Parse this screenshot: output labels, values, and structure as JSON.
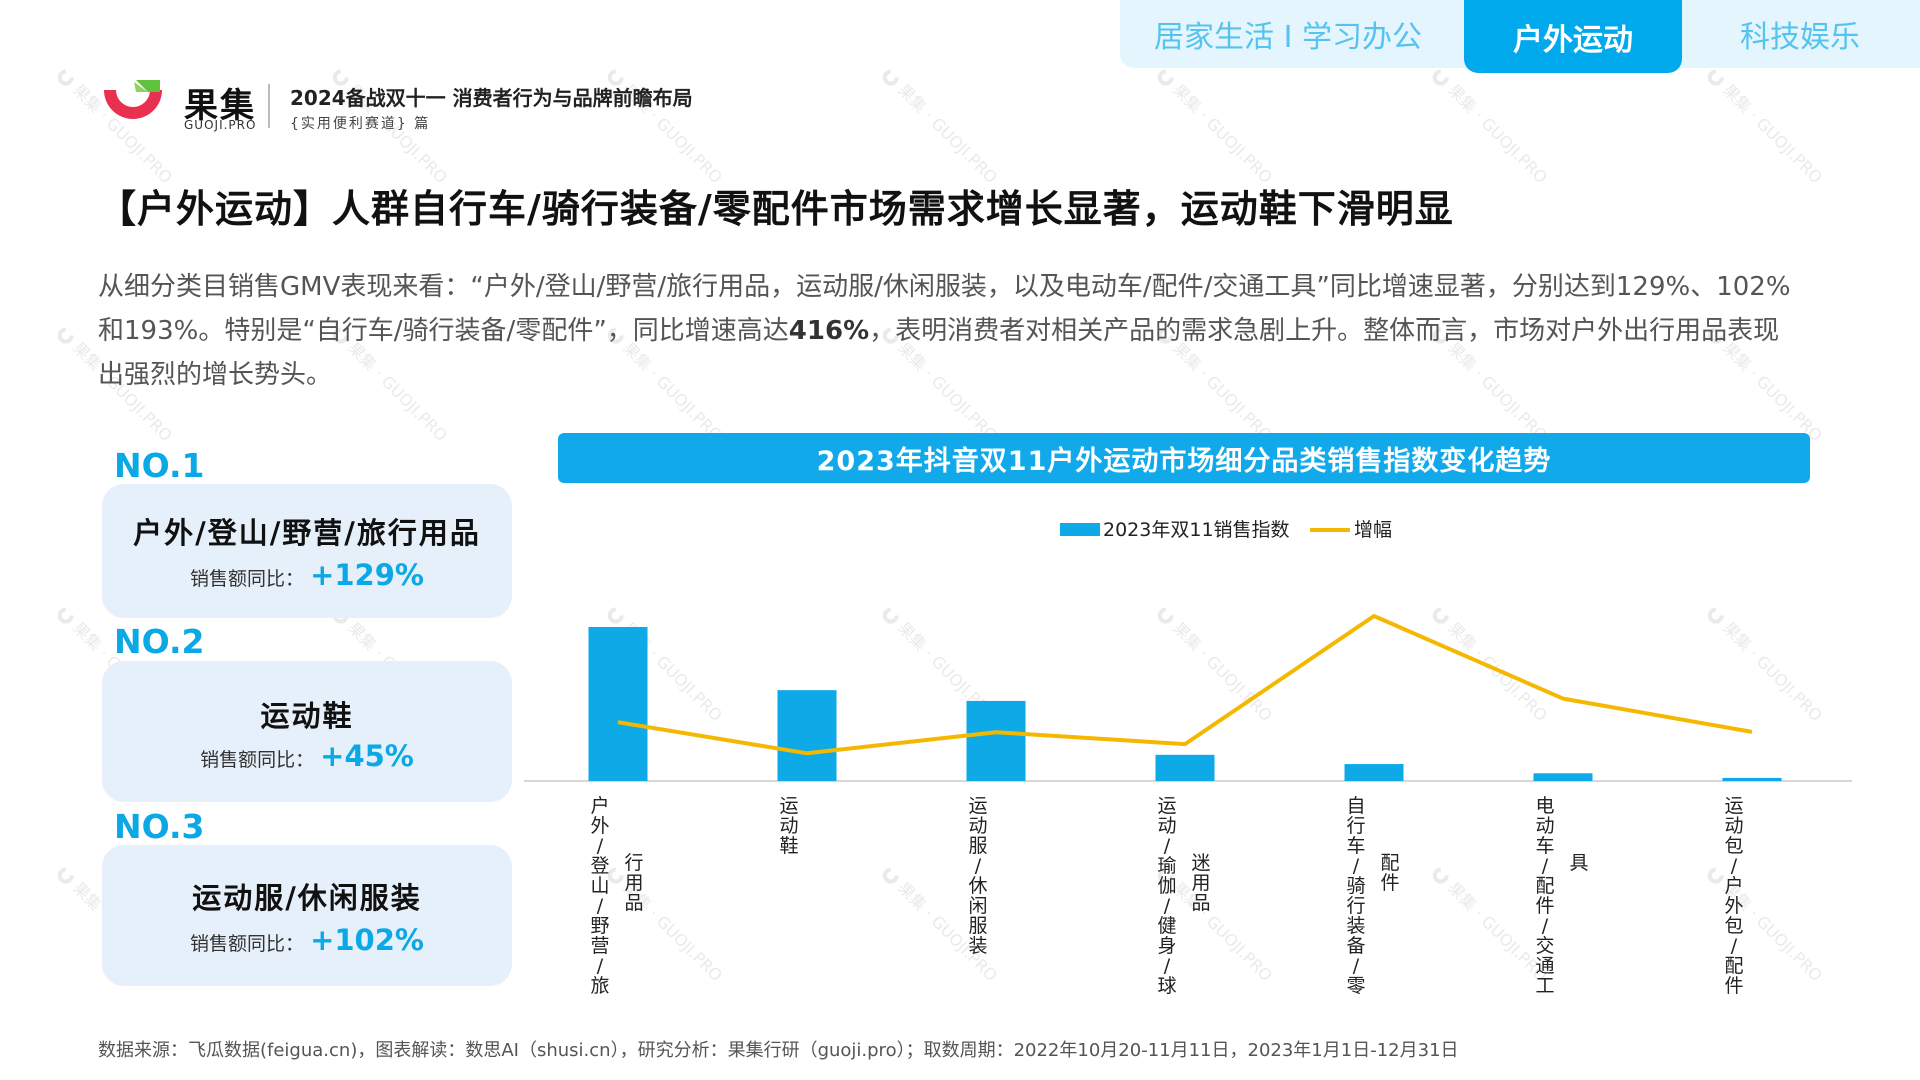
{
  "tabs": [
    {
      "label": "居家生活 I 学习办公",
      "active": false
    },
    {
      "label": "户外运动",
      "active": true
    },
    {
      "label": "科技娱乐",
      "active": false
    }
  ],
  "logo": {
    "name": "果集",
    "sub": "GUOJI.PRO",
    "report_title": "2024备战双十一 消费者行为与品牌前瞻布局",
    "report_sub": "{实用便利赛道} 篇"
  },
  "watermark": {
    "text": "果集 · GUOJI.PRO"
  },
  "headline": "【户外运动】人群自行车/骑行装备/零配件市场需求增长显著，运动鞋下滑明显",
  "intro": {
    "part1": "从细分类目销售GMV表现来看：“户外/登山/野营/旅行用品，运动服/休闲服装，以及电动车/配件/交通工具”同比增速显著，分别达到129%、102%和193%。特别是“自行车/骑行装备/零配件”，同比增速高达",
    "highlight": "416%",
    "part2": "，表明消费者对相关产品的需求急剧上升。整体而言，市场对户外出行用品表现出强烈的增长势头。"
  },
  "rankings": [
    {
      "rank": "NO.1",
      "name": "户外/登山/野营/旅行用品",
      "growth_label": "销售额同比：",
      "growth_value": "+129%"
    },
    {
      "rank": "NO.2",
      "name": "运动鞋",
      "growth_label": "销售额同比：",
      "growth_value": "+45%"
    },
    {
      "rank": "NO.3",
      "name": "运动服/休闲服装",
      "growth_label": "销售额同比：",
      "growth_value": "+102%"
    }
  ],
  "chart_data": {
    "type": "bar",
    "title": "2023年抖音双11户外运动市场细分品类销售指数变化趋势",
    "categories": [
      {
        "col1": "户外/登山/野营/旅",
        "col2": "行用品"
      },
      {
        "col1": "运动鞋",
        "col2": ""
      },
      {
        "col1": "运动服/休闲服装",
        "col2": ""
      },
      {
        "col1": "运动/瑜伽/健身/球",
        "col2": "迷用品"
      },
      {
        "col1": "自行车/骑行装备/零",
        "col2": "配件"
      },
      {
        "col1": "电动车/配件/交通工",
        "col2": "具"
      },
      {
        "col1": "运动包/户外包/配件",
        "col2": ""
      }
    ],
    "series": [
      {
        "name": "2023年双11销售指数",
        "type": "bar",
        "color": "#0eaae8",
        "values": [
          100,
          59,
          52,
          17,
          11,
          5,
          2
        ]
      },
      {
        "name": "增幅",
        "type": "line",
        "color": "#f5b800",
        "values": [
          129,
          45,
          102,
          70,
          416,
          193,
          103
        ]
      }
    ],
    "legend_position": "top-center",
    "grid": false,
    "y_bar_max": 100,
    "y_line_range": [
      0,
      416
    ]
  },
  "footer": "数据来源：飞瓜数据(feigua.cn)，图表解读：数思AI（shusi.cn），研究分析：果集行研（guoji.pro）；取数周期：2022年10月20-11月11日，2023年1月1日-12月31日"
}
